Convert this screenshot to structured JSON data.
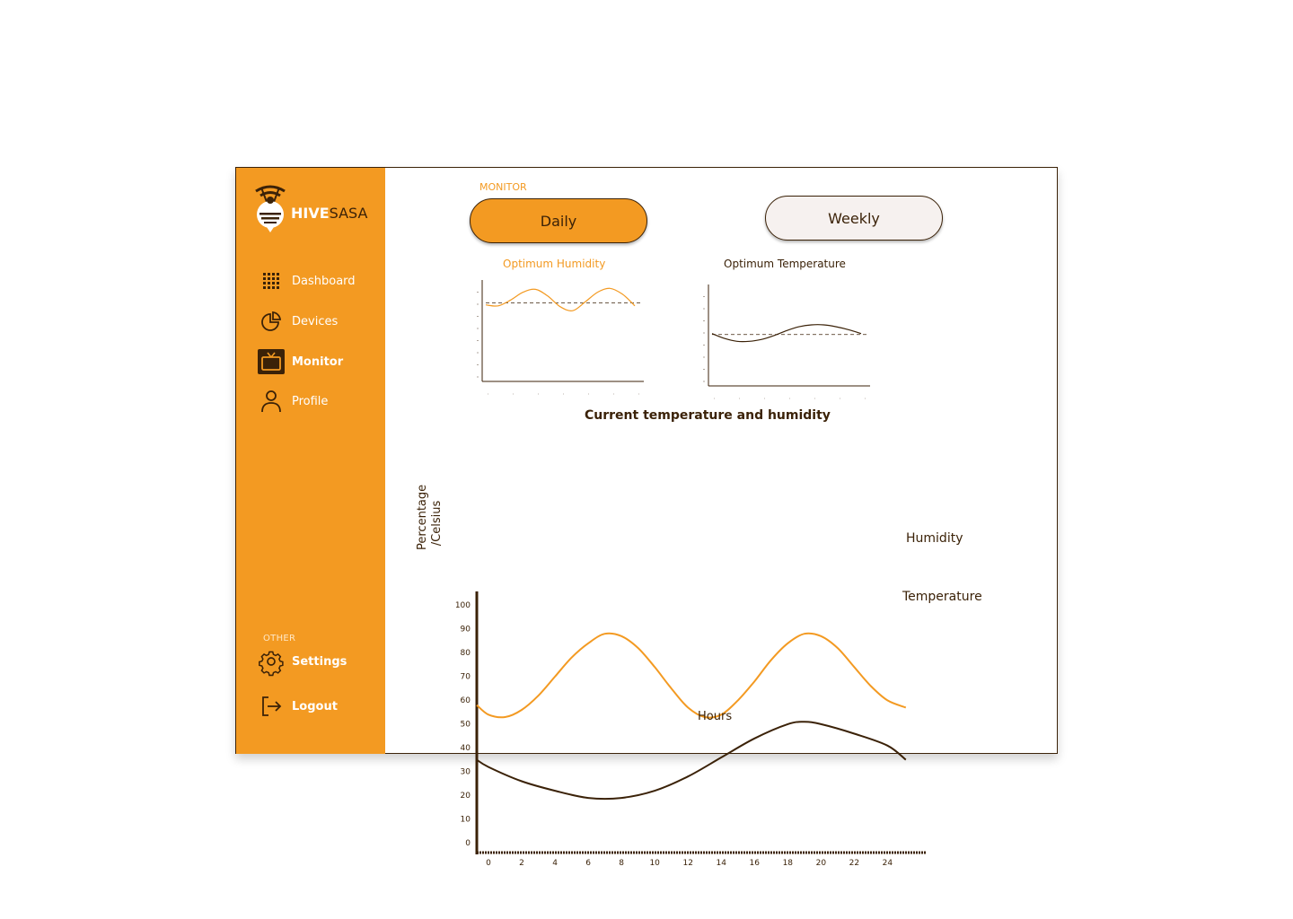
{
  "brand": {
    "part1": "HIVE",
    "part2": "SASA"
  },
  "sidebar": {
    "items": [
      {
        "label": "Dashboard",
        "icon": "grid-icon"
      },
      {
        "label": "Devices",
        "icon": "pie-chart-icon"
      },
      {
        "label": "Monitor",
        "icon": "tv-icon",
        "active": true
      },
      {
        "label": "Profile",
        "icon": "user-icon"
      }
    ],
    "other_label": "OTHER",
    "settings_label": "Settings",
    "logout_label": "Logout"
  },
  "main": {
    "section_label": "MONITOR",
    "daily_label": "Daily",
    "weekly_label": "Weekly",
    "humidity_title": "Optimum Humidity",
    "temperature_title": "Optimum Temperature",
    "chart_title": "Current temperature and humidity",
    "ylabel": "Percentage /Celsius",
    "xlabel": "Hours"
  },
  "colors": {
    "accent": "#f39a22",
    "brown": "#3b2208",
    "weekly_bg": "#f6f1ef"
  },
  "chart_data": [
    {
      "type": "line",
      "title": "Current temperature and humidity",
      "xlabel": "Hours",
      "ylabel": "Percentage /Celsius",
      "x_ticks": [
        0,
        2,
        4,
        6,
        8,
        10,
        12,
        14,
        16,
        18,
        20,
        22,
        24
      ],
      "y_ticks": [
        0,
        10,
        20,
        30,
        40,
        50,
        60,
        70,
        80,
        90,
        100
      ],
      "xlim": [
        0,
        26.3
      ],
      "ylim": [
        0,
        100
      ],
      "grid": false,
      "series": [
        {
          "name": "Humidity",
          "color": "#f39a22",
          "x": [
            -0.7,
            0,
            1,
            2,
            3,
            4,
            5,
            6,
            7,
            8,
            9,
            10,
            11,
            12,
            13,
            14,
            15,
            16,
            17,
            18,
            19,
            20,
            21,
            22,
            23,
            24,
            25.1
          ],
          "values": [
            62,
            58,
            57,
            60,
            66,
            74,
            82,
            88,
            92,
            91,
            86,
            78,
            69,
            61,
            57,
            58,
            64,
            72,
            81,
            88,
            92,
            91,
            86,
            78,
            70,
            64,
            61
          ]
        },
        {
          "name": "Temperature",
          "color": "#3b2208",
          "x": [
            -0.7,
            0,
            2,
            4,
            6,
            8,
            10,
            12,
            14,
            16,
            18,
            19,
            20,
            22,
            24,
            25.1
          ],
          "values": [
            39,
            36,
            30,
            26,
            23,
            23,
            26,
            32,
            40,
            48,
            54,
            55,
            54,
            50,
            45,
            39
          ]
        }
      ]
    },
    {
      "type": "line",
      "title": "Optimum Humidity",
      "series": [
        {
          "color": "#f39a22",
          "x": [
            0,
            1,
            2,
            3,
            4,
            5,
            6,
            7,
            8,
            9,
            10,
            11,
            12
          ],
          "values": [
            79,
            78,
            84,
            92,
            95,
            88,
            77,
            73,
            82,
            92,
            96,
            90,
            78
          ]
        }
      ],
      "threshold": 81
    },
    {
      "type": "line",
      "title": "Optimum Temperature",
      "series": [
        {
          "color": "#3b2208",
          "x": [
            0,
            1,
            2,
            3,
            4,
            5,
            6,
            7,
            8,
            9,
            10,
            11,
            12
          ],
          "values": [
            54,
            49,
            46,
            46,
            48,
            52,
            57,
            61,
            63,
            63,
            61,
            58,
            54
          ]
        }
      ],
      "threshold": 53
    }
  ]
}
